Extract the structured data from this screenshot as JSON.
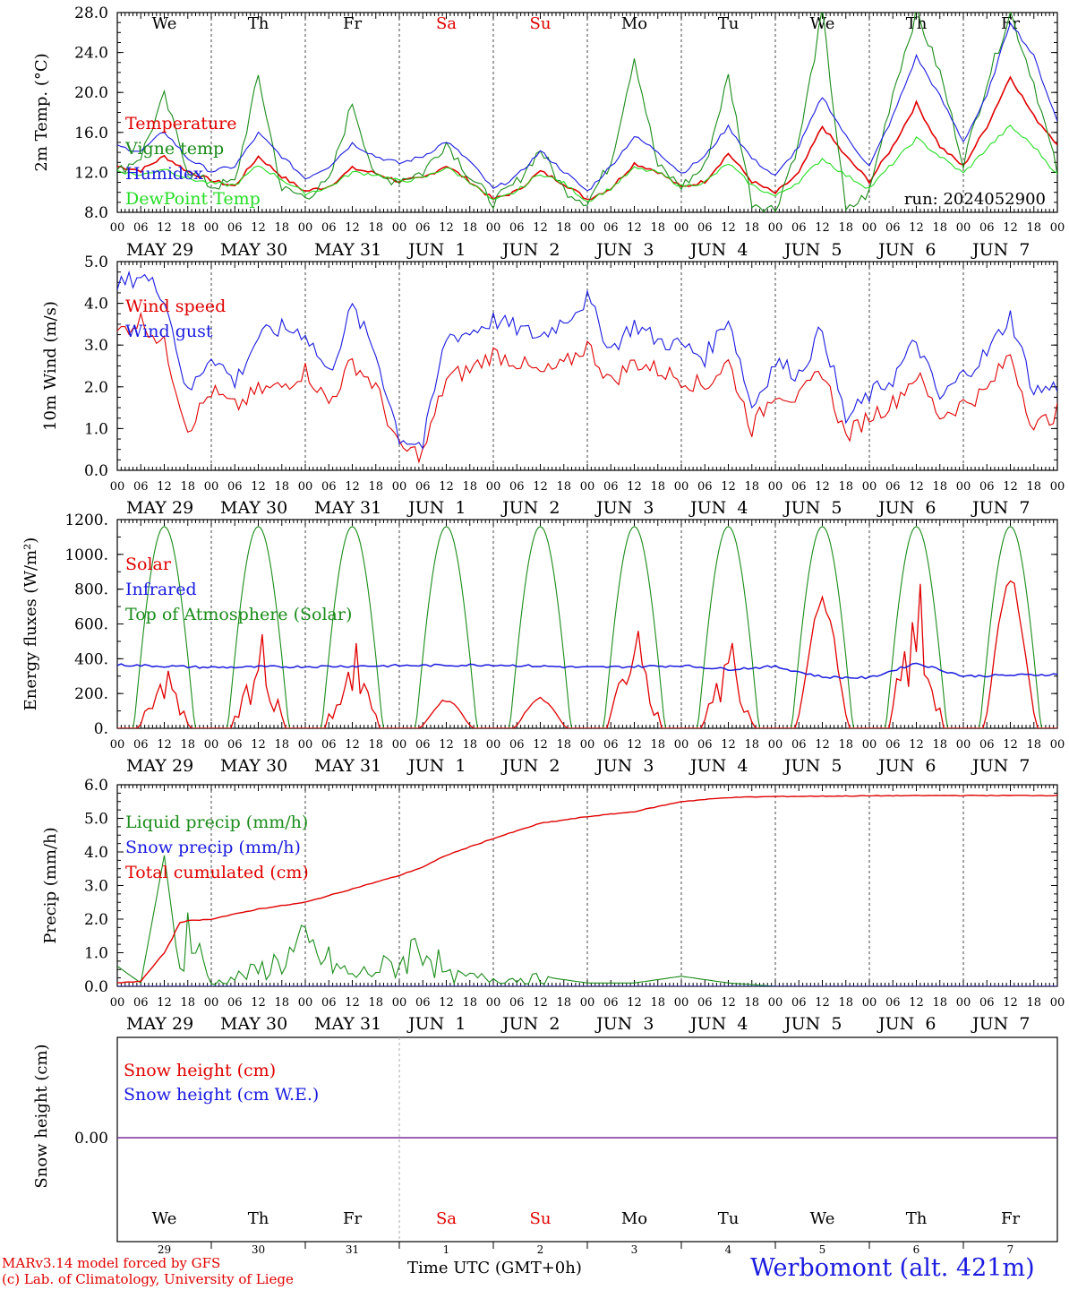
{
  "run_label": "run: 2024052900",
  "day_names": [
    {
      "label": "We",
      "color": "#000000"
    },
    {
      "label": "Th",
      "color": "#000000"
    },
    {
      "label": "Fr",
      "color": "#000000"
    },
    {
      "label": "Sa",
      "color": "#e00000"
    },
    {
      "label": "Su",
      "color": "#e00000"
    },
    {
      "label": "Mo",
      "color": "#000000"
    },
    {
      "label": "Tu",
      "color": "#000000"
    },
    {
      "label": "We",
      "color": "#000000"
    },
    {
      "label": "Th",
      "color": "#000000"
    },
    {
      "label": "Fr",
      "color": "#000000"
    }
  ],
  "date_labels": [
    "MAY 29",
    "MAY 30",
    "MAY 31",
    "JUN  1",
    "JUN  2",
    "JUN  3",
    "JUN  4",
    "JUN  5",
    "JUN  6",
    "JUN  7"
  ],
  "hour_labels": [
    "00",
    "06",
    "12",
    "18"
  ],
  "end_hour_label": "00",
  "day_numbers": [
    "29",
    "30",
    "31",
    "1",
    "2",
    "3",
    "4",
    "5",
    "6",
    "7"
  ],
  "footer": {
    "credit_line1": "MARv3.14 model forced by GFS",
    "credit_line2": "(c) Lab. of Climatology, University of Liege",
    "time_axis": "Time UTC (GMT+0h)",
    "station": "Werbomont (alt. 421m)"
  },
  "colors": {
    "red": "#e00000",
    "green": "#1a8c1a",
    "blue": "#1a1ae0",
    "lightgreen": "#22dd22",
    "purple": "#7a2f9a"
  },
  "chart_data": [
    {
      "type": "line",
      "ylabel": "2m Temp. (°C)",
      "ylim": [
        8,
        28
      ],
      "yticks": [
        "8.0",
        "12.0",
        "16.0",
        "20.0",
        "24.0",
        "28.0"
      ],
      "legend_placement": "upper-left",
      "x_days": [
        0,
        0.25,
        0.5,
        0.75,
        1,
        1.25,
        1.5,
        1.75,
        2,
        2.25,
        2.5,
        2.75,
        3,
        3.25,
        3.5,
        3.75,
        4,
        4.25,
        4.5,
        4.75,
        5,
        5.25,
        5.5,
        5.75,
        6,
        6.25,
        6.5,
        6.75,
        7,
        7.25,
        7.5,
        7.75,
        8,
        8.25,
        8.5,
        8.75,
        9,
        9.25,
        9.5,
        9.75,
        10
      ],
      "series": [
        {
          "name": "Temperature",
          "color": "red",
          "values": [
            12.6,
            12.2,
            13.6,
            12.1,
            11.2,
            10.6,
            13.6,
            11.6,
            10.1,
            10.6,
            12.4,
            11.9,
            11.1,
            11.4,
            12.7,
            11.1,
            9.3,
            10.1,
            12.1,
            10.9,
            9.3,
            10.4,
            12.9,
            12.1,
            10.5,
            11.1,
            13.9,
            11.1,
            9.9,
            11.9,
            16.6,
            13.6,
            11.1,
            14.6,
            18.9,
            14.6,
            12.6,
            16.6,
            21.6,
            17.6,
            14.9
          ]
        },
        {
          "name": "Vigne temp",
          "color": "green",
          "values": [
            12.0,
            13.6,
            19.6,
            12.3,
            10.6,
            11.0,
            21.6,
            10.3,
            9.6,
            11.0,
            19.0,
            11.3,
            11.3,
            12.0,
            15.0,
            11.6,
            9.0,
            11.0,
            14.3,
            10.3,
            9.0,
            13.0,
            23.6,
            12.6,
            10.6,
            12.6,
            21.6,
            9.0,
            8.3,
            15.0,
            28.0,
            8.0,
            10.0,
            20.0,
            28.0,
            22.0,
            13.0,
            21.0,
            28.0,
            21.0,
            12.0
          ]
        },
        {
          "name": "Humidex",
          "color": "blue",
          "values": [
            14.6,
            14.1,
            16.1,
            13.4,
            12.1,
            12.6,
            15.9,
            13.6,
            11.4,
            12.6,
            14.9,
            13.6,
            12.9,
            13.6,
            15.1,
            13.1,
            10.3,
            11.6,
            14.1,
            12.1,
            10.1,
            12.6,
            15.6,
            14.1,
            11.9,
            13.6,
            16.6,
            13.4,
            11.6,
            14.6,
            19.6,
            15.6,
            12.6,
            17.6,
            23.6,
            19.6,
            15.1,
            19.6,
            27.1,
            23.6,
            17.1
          ]
        },
        {
          "name": "DewPoint Temp",
          "color": "lightgreen",
          "values": [
            12.2,
            11.7,
            12.4,
            11.4,
            10.9,
            10.7,
            12.7,
            11.3,
            9.9,
            10.5,
            12.0,
            11.8,
            11.1,
            11.4,
            12.5,
            11.1,
            9.1,
            10.1,
            11.9,
            10.9,
            9.1,
            10.4,
            12.4,
            12.0,
            10.6,
            11.0,
            12.9,
            10.7,
            9.6,
            11.1,
            13.4,
            11.7,
            10.4,
            12.9,
            15.4,
            13.6,
            11.9,
            14.4,
            16.6,
            14.6,
            11.8
          ]
        }
      ]
    },
    {
      "type": "line",
      "ylabel": "10m Wind (m/s)",
      "ylim": [
        0,
        5
      ],
      "yticks": [
        "0.0",
        "1.0",
        "2.0",
        "3.0",
        "4.0",
        "5.0"
      ],
      "legend_placement": "upper-left",
      "x_days": [
        0,
        0.25,
        0.5,
        0.75,
        1,
        1.25,
        1.5,
        1.75,
        2,
        2.25,
        2.5,
        2.75,
        3,
        3.25,
        3.5,
        3.75,
        4,
        4.25,
        4.5,
        4.75,
        5,
        5.25,
        5.5,
        5.75,
        6,
        6.25,
        6.5,
        6.75,
        7,
        7.25,
        7.5,
        7.75,
        8,
        8.25,
        8.5,
        8.75,
        9,
        9.25,
        9.5,
        9.75,
        10
      ],
      "series": [
        {
          "name": "Wind speed",
          "color": "red",
          "values": [
            3.3,
            3.6,
            3.0,
            1.0,
            1.9,
            1.5,
            1.9,
            2.0,
            2.4,
            1.6,
            2.6,
            2.0,
            0.5,
            0.4,
            2.2,
            2.4,
            2.8,
            2.6,
            2.3,
            2.5,
            3.0,
            2.1,
            2.6,
            2.4,
            2.2,
            2.0,
            2.6,
            1.0,
            1.9,
            1.7,
            2.4,
            0.8,
            1.3,
            1.6,
            2.3,
            1.3,
            1.6,
            1.9,
            2.8,
            1.0,
            1.4
          ]
        },
        {
          "name": "Wind gust",
          "color": "blue",
          "values": [
            4.4,
            4.7,
            4.2,
            1.8,
            2.8,
            2.1,
            3.2,
            3.4,
            3.3,
            2.3,
            3.9,
            2.8,
            0.8,
            0.6,
            3.2,
            3.3,
            3.6,
            3.4,
            3.2,
            3.6,
            4.1,
            2.9,
            3.5,
            3.1,
            3.0,
            2.7,
            3.7,
            1.5,
            2.6,
            2.3,
            3.4,
            1.2,
            1.8,
            2.2,
            3.1,
            1.7,
            2.3,
            2.8,
            3.7,
            1.9,
            2.0
          ]
        }
      ]
    },
    {
      "type": "line",
      "ylabel": "Energy fluxes (W/m²)",
      "ylim": [
        0,
        1200
      ],
      "yticks": [
        "0.",
        "200.",
        "400.",
        "600.",
        "800.",
        "1000.",
        "1200."
      ],
      "legend_placement": "upper-left",
      "series": [
        {
          "name": "Solar",
          "color": "red",
          "daily_peak": [
            330,
            540,
            490,
            170,
            180,
            560,
            490,
            760,
            830,
            880
          ],
          "daily_kind": [
            "spiky",
            "spiky",
            "spiky",
            "smooth",
            "smooth",
            "spiky",
            "spiky",
            "smooth",
            "spiky",
            "smooth"
          ]
        },
        {
          "name": "Infrared",
          "color": "blue",
          "x_days": [
            0,
            1,
            2,
            3,
            4,
            5,
            6,
            6.5,
            7,
            7.5,
            8,
            8.5,
            9,
            10
          ],
          "values": [
            365,
            350,
            355,
            360,
            365,
            350,
            360,
            340,
            355,
            295,
            290,
            375,
            300,
            310
          ]
        },
        {
          "name": "Top of Atmosphere (Solar)",
          "color": "green",
          "daily_peak": [
            1160,
            1160,
            1160,
            1160,
            1160,
            1160,
            1160,
            1160,
            1160,
            1160
          ],
          "daylight_hours": [
            4.2,
            19.8
          ]
        }
      ]
    },
    {
      "type": "line",
      "ylabel": "Precip (mm/h)",
      "ylim": [
        0,
        6
      ],
      "yticks": [
        "0.0",
        "1.0",
        "2.0",
        "3.0",
        "4.0",
        "5.0",
        "6.0"
      ],
      "legend_placement": "upper-left",
      "x_days": [
        0,
        0.25,
        0.5,
        0.58,
        0.66,
        0.75,
        1,
        1.5,
        2,
        2.5,
        3,
        3.25,
        3.5,
        4,
        4.5,
        5,
        5.5,
        6,
        6.5,
        7,
        8,
        9,
        10
      ],
      "series": [
        {
          "name": "Liquid precip (mm/h)",
          "color": "green",
          "values": [
            0.6,
            0.1,
            3.9,
            2.2,
            0.4,
            2.2,
            0.1,
            0.6,
            1.5,
            0.4,
            0.9,
            1.8,
            0.4,
            0.3,
            0.3,
            0.1,
            0.1,
            0.3,
            0.1,
            0.0,
            0.0,
            0.0,
            0.0
          ]
        },
        {
          "name": "Snow precip (mm/h)",
          "color": "blue",
          "values": [
            0,
            0,
            0,
            0,
            0,
            0,
            0,
            0,
            0,
            0,
            0,
            0,
            0,
            0,
            0,
            0,
            0,
            0,
            0,
            0,
            0,
            0,
            0
          ]
        },
        {
          "name": "Total cumulated (cm)",
          "color": "red",
          "values": [
            0.1,
            0.15,
            1.0,
            1.4,
            1.9,
            1.95,
            2.0,
            2.3,
            2.5,
            2.9,
            3.3,
            3.55,
            3.9,
            4.4,
            4.85,
            5.05,
            5.2,
            5.5,
            5.62,
            5.65,
            5.67,
            5.68,
            5.68
          ]
        }
      ]
    },
    {
      "type": "line",
      "ylabel": "Snow height (cm)",
      "yticks": [
        "0.00"
      ],
      "legend_placement": "upper-left",
      "series": [
        {
          "name": "Snow height (cm)",
          "color": "red",
          "values": [
            0,
            0
          ]
        },
        {
          "name": "Snow height (cm W.E.)",
          "color": "blue",
          "values": [
            0,
            0
          ]
        }
      ]
    }
  ]
}
